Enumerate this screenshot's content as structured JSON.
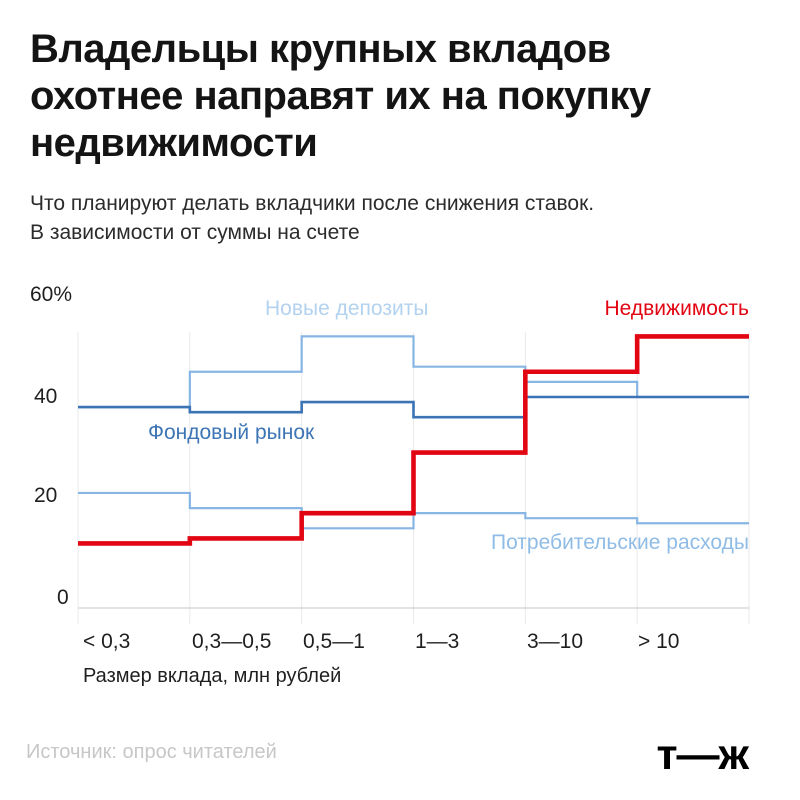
{
  "title": {
    "lines": [
      "Владельцы крупных вкладов",
      "охотнее направят их на покупку",
      "недвижимости"
    ]
  },
  "subtitle": {
    "lines": [
      "Что планируют делать вкладчики после снижения ставок.",
      "В зависимости от суммы на счете"
    ]
  },
  "chart_data": {
    "type": "line",
    "subtype": "step",
    "categories": [
      "< 0,3",
      "0,3—0,5",
      "0,5—1",
      "1—3",
      "3—10",
      "> 10"
    ],
    "series": [
      {
        "name": "Новые депозиты",
        "values": [
          38,
          45,
          52,
          46,
          43,
          40
        ],
        "color": "#87b6e4",
        "label_color": "#b3d2ef",
        "width": 2.2
      },
      {
        "name": "Потребительские расходы",
        "values": [
          21,
          18,
          14,
          17,
          16,
          15
        ],
        "color": "#87b6e4",
        "label_color": "#8fbce6",
        "width": 2.2
      },
      {
        "name": "Фондовый рынок",
        "values": [
          38,
          37,
          39,
          36,
          40,
          40
        ],
        "color": "#3b73b5",
        "label_color": "#3e75b5",
        "width": 2.6
      },
      {
        "name": "Недвижимость",
        "values": [
          11,
          12,
          17,
          29,
          45,
          52
        ],
        "color": "#e20613",
        "label_color": "#e20613",
        "width": 4.6
      }
    ],
    "yticks": [
      "0",
      "20",
      "40",
      "60%"
    ],
    "ytick_values": [
      0,
      20,
      40,
      60
    ],
    "ylim": [
      0,
      60
    ],
    "xlabel": "Размер вклада, млн рублей",
    "ylabel": "",
    "grid": "vertical",
    "legend_position": "inline-labels",
    "grid_color": "#e9e9e9",
    "baseline_color": "#d8d8d8"
  },
  "footer": {
    "source": "Источник: опрос читателей",
    "logo": "т—ж"
  }
}
